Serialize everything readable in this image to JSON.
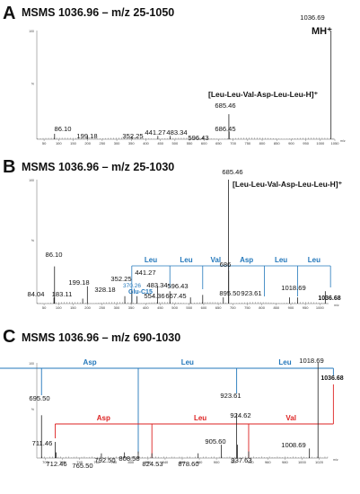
{
  "chart_data": [
    {
      "type": "bar",
      "panel": "A",
      "title": "MSMS 1036.96 – m/z 25-1050",
      "xlim": [
        25,
        1050
      ],
      "ylim": [
        0,
        100
      ],
      "ytick_labels": [
        "100",
        "%"
      ],
      "xticks": [
        50,
        100,
        150,
        200,
        250,
        300,
        350,
        400,
        450,
        500,
        550,
        600,
        650,
        700,
        750,
        800,
        850,
        900,
        950,
        1000,
        1050
      ],
      "xtick_labels": [
        "50",
        "100",
        "150",
        "200",
        "250",
        "300",
        "350",
        "400",
        "450",
        "500",
        "550",
        "600",
        "650",
        "700",
        "750",
        "800",
        "850",
        "900",
        "950",
        "1000",
        "1050"
      ],
      "xunit": "m/z",
      "peaks": [
        {
          "mz": 86.1,
          "intensity": 5,
          "label": "86.10"
        },
        {
          "mz": 199.18,
          "intensity": 3,
          "label": "199.18"
        },
        {
          "mz": 352.25,
          "intensity": 3,
          "label": "352.25"
        },
        {
          "mz": 441.27,
          "intensity": 3,
          "label": "441.27"
        },
        {
          "mz": 483.34,
          "intensity": 3,
          "label": "483.34"
        },
        {
          "mz": 596.43,
          "intensity": 2,
          "label": "596.43"
        },
        {
          "mz": 685.46,
          "intensity": 23,
          "label": "685.46"
        },
        {
          "mz": 686.45,
          "intensity": 7,
          "label": "686.45"
        },
        {
          "mz": 1036.69,
          "intensity": 100,
          "label": "1036.69"
        }
      ],
      "annotations": [
        "MH⁺",
        "[Leu-Leu-Val-Asp-Leu-Leu-H]⁺"
      ]
    },
    {
      "type": "bar",
      "panel": "B",
      "title": "MSMS 1036.96 – m/z 25-1030",
      "xlim": [
        25,
        1030
      ],
      "ylim": [
        0,
        100
      ],
      "ytick_labels": [
        "100",
        "%"
      ],
      "xticks": [
        50,
        100,
        150,
        200,
        250,
        300,
        350,
        400,
        450,
        500,
        550,
        600,
        650,
        700,
        750,
        800,
        850,
        900,
        950,
        1000
      ],
      "xtick_labels": [
        "50",
        "100",
        "150",
        "200",
        "250",
        "300",
        "350",
        "400",
        "450",
        "500",
        "550",
        "600",
        "650",
        "700",
        "750",
        "800",
        "850",
        "900",
        "950",
        "1000"
      ],
      "xunit": "m/z",
      "peaks": [
        {
          "mz": 84.04,
          "intensity": 5,
          "label": "84.04"
        },
        {
          "mz": 86.1,
          "intensity": 30,
          "label": "86.10"
        },
        {
          "mz": 183.11,
          "intensity": 4,
          "label": "183.11"
        },
        {
          "mz": 199.18,
          "intensity": 14,
          "label": "199.18"
        },
        {
          "mz": 328.18,
          "intensity": 6,
          "label": "328.18"
        },
        {
          "mz": 352.25,
          "intensity": 11,
          "label": "352.25"
        },
        {
          "mz": 370.26,
          "intensity": 6,
          "label": "370.26"
        },
        {
          "mz": 441.27,
          "intensity": 14,
          "label": "441.27"
        },
        {
          "mz": 483.34,
          "intensity": 10,
          "label": "483.34"
        },
        {
          "mz": 554.36,
          "intensity": 5,
          "label": "554.36"
        },
        {
          "mz": 596.43,
          "intensity": 7,
          "label": "596.43"
        },
        {
          "mz": 667.45,
          "intensity": 5,
          "label": "667.45"
        },
        {
          "mz": 685.46,
          "intensity": 100,
          "label": "685.46"
        },
        {
          "mz": 686.0,
          "intensity": 27,
          "label": "686"
        },
        {
          "mz": 895.5,
          "intensity": 5,
          "label": "895.50"
        },
        {
          "mz": 923.61,
          "intensity": 5,
          "label": "923.61"
        },
        {
          "mz": 1018.69,
          "intensity": 10,
          "label": "1018.69"
        },
        {
          "mz": 1036.68,
          "intensity": 0,
          "label": "1036.68"
        }
      ],
      "sequence_labels": [
        "Leu",
        "Leu",
        "Val",
        "Asp",
        "Leu",
        "Leu"
      ],
      "annotations": [
        "[Leu-Leu-Val-Asp-Leu-Leu-H]⁺",
        "Glu-C15"
      ]
    },
    {
      "type": "bar",
      "panel": "C",
      "title": "MSMS 1036.96 – m/z 690-1030",
      "xlim": [
        690,
        1030
      ],
      "ylim": [
        0,
        100
      ],
      "ytick_labels": [
        "100",
        "%"
      ],
      "xticks": [
        700,
        720,
        740,
        760,
        780,
        800,
        820,
        840,
        860,
        880,
        900,
        920,
        940,
        960,
        980,
        1000,
        1020
      ],
      "xtick_labels": [
        "700",
        "720",
        "740",
        "760",
        "780",
        "800",
        "820",
        "840",
        "860",
        "880",
        "900",
        "920",
        "940",
        "960",
        "980",
        "1000",
        "1020"
      ],
      "xunit": "m/z",
      "peaks": [
        {
          "mz": 695.5,
          "intensity": 45,
          "label": "695.50"
        },
        {
          "mz": 711.46,
          "intensity": 17,
          "label": "711.46"
        },
        {
          "mz": 712.46,
          "intensity": 6,
          "label": "712.46"
        },
        {
          "mz": 765.5,
          "intensity": 5,
          "label": "765.50"
        },
        {
          "mz": 792.5,
          "intensity": 6,
          "label": "792.50"
        },
        {
          "mz": 808.58,
          "intensity": 7,
          "label": "808.58"
        },
        {
          "mz": 824.53,
          "intensity": 5,
          "label": "824.53"
        },
        {
          "mz": 878.6,
          "intensity": 5,
          "label": "878.60"
        },
        {
          "mz": 905.6,
          "intensity": 14,
          "label": "905.60"
        },
        {
          "mz": 923.61,
          "intensity": 47,
          "label": "923.61"
        },
        {
          "mz": 924.62,
          "intensity": 14,
          "label": "924.62"
        },
        {
          "mz": 937.63,
          "intensity": 7,
          "label": "937.63"
        },
        {
          "mz": 1008.69,
          "intensity": 10,
          "label": "1008.69"
        },
        {
          "mz": 1018.69,
          "intensity": 100,
          "label": "1018.69"
        },
        {
          "mz": 1036.68,
          "intensity": 0,
          "label": "1036.68"
        }
      ],
      "blue_sequence": [
        "Asp",
        "Leu",
        "Leu"
      ],
      "red_sequence": [
        "Asp",
        "Leu",
        "Val"
      ]
    }
  ],
  "panels": [
    {
      "letter": "A",
      "title": "MSMS 1036.96 – m/z 25-1050"
    },
    {
      "letter": "B",
      "title": "MSMS 1036.96 – m/z 25-1030"
    },
    {
      "letter": "C",
      "title": "MSMS 1036.96 – m/z 690-1030"
    }
  ],
  "colors": {
    "blue": "#2277bb",
    "red": "#dd2222",
    "peaks": "#222222"
  }
}
